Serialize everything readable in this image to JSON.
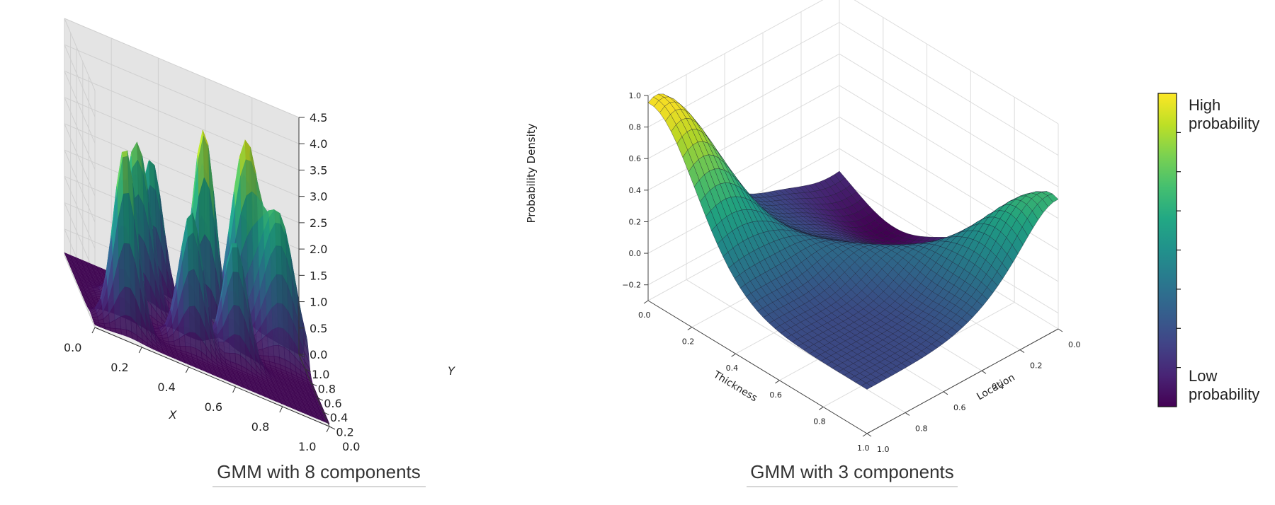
{
  "colors": {
    "viridis": [
      "#440154",
      "#482475",
      "#414487",
      "#355f8d",
      "#2a788e",
      "#21918c",
      "#22a884",
      "#44bf70",
      "#7ad151",
      "#bddf26",
      "#fde725"
    ],
    "pane_left": "#ebebeb",
    "pane_right": "#e4e4e4",
    "pane_floor": "#f0f0f0",
    "grid": "#cfcfcf",
    "mesh_line": "#1a1a2e"
  },
  "chart_data": [
    {
      "type": "surface3d",
      "caption": "GMM with 8 components",
      "xlabel": "X",
      "ylabel": "Y",
      "zlabel": "Probability Density",
      "xlim": [
        0,
        1
      ],
      "ylim": [
        0,
        1
      ],
      "zlim": [
        0,
        4.5
      ],
      "x_ticks": [
        "0.0",
        "0.2",
        "0.4",
        "0.6",
        "0.8",
        "1.0"
      ],
      "y_ticks": [
        "0.0",
        "0.2",
        "0.4",
        "0.6",
        "0.8",
        "1.0"
      ],
      "z_ticks": [
        "0.0",
        "0.5",
        "1.0",
        "1.5",
        "2.0",
        "2.5",
        "3.0",
        "3.5",
        "4.0",
        "4.5"
      ],
      "components": [
        {
          "mu": [
            0.15,
            0.15
          ],
          "sigma": 0.05,
          "peak": 3.5
        },
        {
          "mu": [
            0.25,
            0.55
          ],
          "sigma": 0.06,
          "peak": 3.2
        },
        {
          "mu": [
            0.35,
            0.85
          ],
          "sigma": 0.05,
          "peak": 2.7
        },
        {
          "mu": [
            0.45,
            0.3
          ],
          "sigma": 0.05,
          "peak": 2.6
        },
        {
          "mu": [
            0.55,
            0.65
          ],
          "sigma": 0.05,
          "peak": 3.9
        },
        {
          "mu": [
            0.65,
            0.4
          ],
          "sigma": 0.05,
          "peak": 2.3
        },
        {
          "mu": [
            0.75,
            0.85
          ],
          "sigma": 0.06,
          "peak": 3.6
        },
        {
          "mu": [
            0.88,
            0.75
          ],
          "sigma": 0.07,
          "peak": 2.7
        }
      ]
    },
    {
      "type": "surface3d",
      "caption": "GMM with 3 components",
      "xlabel": "Thickness",
      "ylabel": "Location",
      "zlim": [
        -0.3,
        1.0
      ],
      "x_ticks": [
        "0.0",
        "0.2",
        "0.4",
        "0.6",
        "0.8",
        "1.0"
      ],
      "y_ticks": [
        "0.0",
        "0.2",
        "0.4",
        "0.6",
        "0.8",
        "1.0"
      ],
      "z_ticks": [
        "−0.2",
        "0.0",
        "0.2",
        "0.4",
        "0.6",
        "0.8",
        "1.0"
      ]
    }
  ],
  "colorbar": {
    "high_label": "High probability",
    "low_label": "Low probability"
  }
}
